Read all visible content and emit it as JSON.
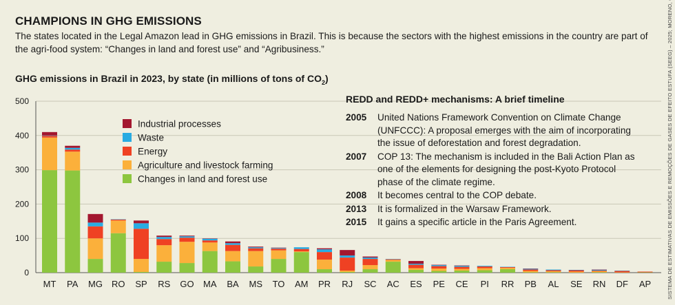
{
  "header": {
    "title": "CHAMPIONS IN GHG EMISSIONS",
    "description": "The states located in the Legal Amazon lead in GHG emissions in Brazil. This is because the sectors with the highest emissions in the country are part of the agri-food system: “Changes in land and forest use” and “Agribusiness.”",
    "chart_title_main": "GHG emissions in Brazil in 2023, by state (in millions of tons of CO",
    "chart_title_sub": "2",
    "chart_title_end": ")"
  },
  "source": "SISTEMA DE ESTIMATIVAS DE EMISSÕES E REMOÇÕES DE GASES DE EFEITO ESTUFA (SEEG) – 2025; MORENO, CAMILA",
  "timeline": {
    "title": "REDD and REDD+ mechanisms: A brief timeline",
    "items": [
      {
        "year": "2005",
        "text": "United Nations Framework Convention on Climate Change (UNFCCC): A proposal emerges with the aim of incorporating the issue of deforestation and forest degradation."
      },
      {
        "year": "2007",
        "text": "COP 13: The mechanism is included in the Bali Action Plan as one of the elements for designing the post-Kyoto Protocol phase of the climate regime."
      },
      {
        "year": "2008",
        "text": "It becomes central to the COP debate."
      },
      {
        "year": "2013",
        "text": "It is formalized in the Warsaw Framework."
      },
      {
        "year": "2015",
        "text": "It gains a specific article in the Paris Agreement."
      }
    ]
  },
  "chart_data": {
    "type": "bar",
    "stacked": true,
    "ylim": [
      0,
      500
    ],
    "yticks": [
      0,
      100,
      200,
      300,
      400,
      500
    ],
    "grid": true,
    "legend_position": "top-left inside plot",
    "categories": [
      "MT",
      "PA",
      "MG",
      "RO",
      "SP",
      "RS",
      "GO",
      "MA",
      "BA",
      "MS",
      "TO",
      "AM",
      "PR",
      "RJ",
      "SC",
      "AC",
      "ES",
      "PE",
      "CE",
      "PI",
      "RR",
      "PB",
      "AL",
      "SE",
      "RN",
      "DF",
      "AP"
    ],
    "series": [
      {
        "name": "Changes in land and forest use",
        "color": "#8dc63f",
        "values": [
          299,
          298,
          40,
          115,
          2,
          32,
          28,
          63,
          33,
          18,
          40,
          60,
          10,
          2,
          10,
          32,
          8,
          5,
          6,
          7,
          10,
          1,
          1,
          0,
          1,
          0,
          1
        ]
      },
      {
        "name": "Agriculture and livestock farming",
        "color": "#fbb03b",
        "values": [
          95,
          55,
          60,
          37,
          38,
          48,
          62,
          25,
          30,
          45,
          25,
          2,
          28,
          4,
          12,
          5,
          5,
          7,
          5,
          6,
          4,
          4,
          3,
          3,
          3,
          1,
          0
        ]
      },
      {
        "name": "Energy",
        "color": "#ef4123",
        "values": [
          5,
          6,
          35,
          3,
          88,
          18,
          12,
          6,
          18,
          8,
          5,
          7,
          22,
          38,
          18,
          2,
          10,
          7,
          6,
          5,
          2,
          4,
          3,
          3,
          2,
          4,
          2
        ]
      },
      {
        "name": "Waste",
        "color": "#29abe2",
        "values": [
          1,
          5,
          11,
          1,
          16,
          6,
          4,
          5,
          5,
          3,
          2,
          5,
          8,
          6,
          4,
          1,
          3,
          3,
          3,
          2,
          1,
          2,
          2,
          1,
          2,
          1,
          0
        ]
      },
      {
        "name": "Industrial processes",
        "color": "#a3172f",
        "values": [
          10,
          6,
          25,
          0,
          8,
          4,
          2,
          1,
          5,
          2,
          1,
          0,
          3,
          16,
          3,
          0,
          8,
          1,
          1,
          0,
          0,
          1,
          0,
          1,
          1,
          0,
          0
        ]
      }
    ]
  }
}
